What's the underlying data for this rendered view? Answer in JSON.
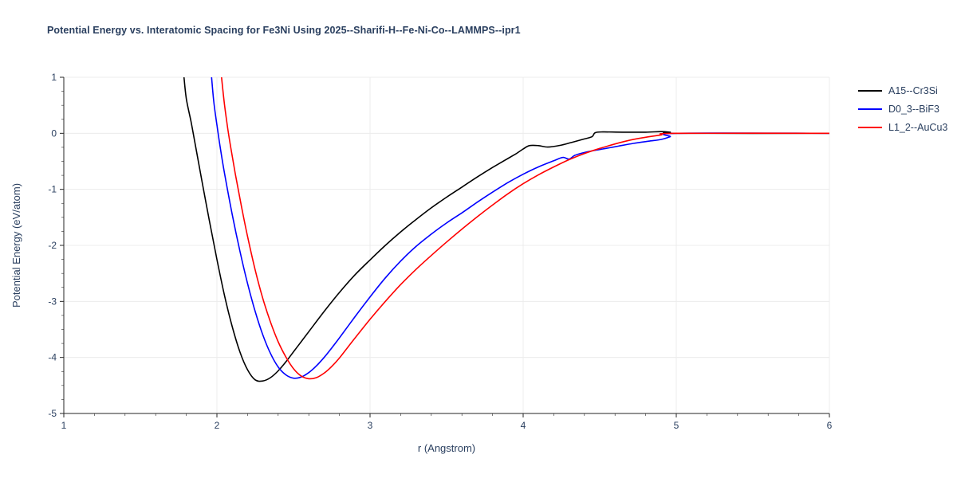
{
  "chart_data": {
    "type": "line",
    "title": "Potential Energy vs. Interatomic Spacing for Fe3Ni Using 2025--Sharifi-H--Fe-Ni-Co--LAMMPS--ipr1",
    "xlabel": "r (Angstrom)",
    "ylabel": "Potential Energy (eV/atom)",
    "xlim": [
      1,
      6
    ],
    "ylim": [
      -5,
      1
    ],
    "xticks": [
      1,
      2,
      3,
      4,
      5,
      6
    ],
    "yticks": [
      -5,
      -4,
      -3,
      -2,
      -1,
      0,
      1
    ],
    "grid": true,
    "legend_position": "top-right-outside",
    "text_color": "#2a3f5f",
    "grid_color": "#ececec",
    "axis_color": "#262626",
    "series": [
      {
        "name": "A15--Cr3Si",
        "color": "#000000",
        "points": [
          [
            1.785,
            1.0
          ],
          [
            1.8,
            0.62
          ],
          [
            1.83,
            0.22
          ],
          [
            1.86,
            -0.22
          ],
          [
            1.9,
            -0.82
          ],
          [
            1.95,
            -1.55
          ],
          [
            2.0,
            -2.25
          ],
          [
            2.05,
            -2.9
          ],
          [
            2.1,
            -3.45
          ],
          [
            2.15,
            -3.9
          ],
          [
            2.2,
            -4.22
          ],
          [
            2.25,
            -4.4
          ],
          [
            2.3,
            -4.42
          ],
          [
            2.35,
            -4.36
          ],
          [
            2.4,
            -4.24
          ],
          [
            2.45,
            -4.08
          ],
          [
            2.5,
            -3.9
          ],
          [
            2.55,
            -3.72
          ],
          [
            2.6,
            -3.54
          ],
          [
            2.7,
            -3.18
          ],
          [
            2.8,
            -2.84
          ],
          [
            2.9,
            -2.53
          ],
          [
            3.0,
            -2.26
          ],
          [
            3.1,
            -2.0
          ],
          [
            3.2,
            -1.76
          ],
          [
            3.3,
            -1.54
          ],
          [
            3.4,
            -1.33
          ],
          [
            3.5,
            -1.14
          ],
          [
            3.6,
            -0.96
          ],
          [
            3.7,
            -0.78
          ],
          [
            3.8,
            -0.61
          ],
          [
            3.9,
            -0.45
          ],
          [
            3.95,
            -0.37
          ],
          [
            4.0,
            -0.28
          ],
          [
            4.04,
            -0.22
          ],
          [
            4.1,
            -0.22
          ],
          [
            4.16,
            -0.245
          ],
          [
            4.24,
            -0.215
          ],
          [
            4.32,
            -0.16
          ],
          [
            4.4,
            -0.1
          ],
          [
            4.45,
            -0.06
          ],
          [
            4.47,
            0.01
          ],
          [
            4.52,
            0.025
          ],
          [
            4.65,
            0.02
          ],
          [
            4.8,
            0.02
          ],
          [
            4.9,
            0.03
          ],
          [
            4.96,
            0.02
          ],
          [
            5.0,
            0.0
          ],
          [
            6.0,
            0.0
          ]
        ]
      },
      {
        "name": "D0_3--BiF3",
        "color": "#0000ff",
        "points": [
          [
            1.965,
            1.0
          ],
          [
            1.98,
            0.55
          ],
          [
            2.0,
            0.15
          ],
          [
            2.02,
            -0.22
          ],
          [
            2.05,
            -0.72
          ],
          [
            2.1,
            -1.45
          ],
          [
            2.15,
            -2.1
          ],
          [
            2.2,
            -2.68
          ],
          [
            2.25,
            -3.18
          ],
          [
            2.3,
            -3.6
          ],
          [
            2.35,
            -3.93
          ],
          [
            2.4,
            -4.17
          ],
          [
            2.45,
            -4.31
          ],
          [
            2.5,
            -4.37
          ],
          [
            2.55,
            -4.35
          ],
          [
            2.6,
            -4.27
          ],
          [
            2.65,
            -4.15
          ],
          [
            2.7,
            -4.0
          ],
          [
            2.75,
            -3.83
          ],
          [
            2.8,
            -3.65
          ],
          [
            2.9,
            -3.28
          ],
          [
            3.0,
            -2.92
          ],
          [
            3.1,
            -2.58
          ],
          [
            3.2,
            -2.28
          ],
          [
            3.3,
            -2.02
          ],
          [
            3.4,
            -1.8
          ],
          [
            3.5,
            -1.6
          ],
          [
            3.6,
            -1.42
          ],
          [
            3.7,
            -1.23
          ],
          [
            3.8,
            -1.05
          ],
          [
            3.9,
            -0.88
          ],
          [
            4.0,
            -0.73
          ],
          [
            4.1,
            -0.6
          ],
          [
            4.2,
            -0.49
          ],
          [
            4.26,
            -0.43
          ],
          [
            4.3,
            -0.46
          ],
          [
            4.34,
            -0.39
          ],
          [
            4.42,
            -0.33
          ],
          [
            4.52,
            -0.28
          ],
          [
            4.62,
            -0.23
          ],
          [
            4.72,
            -0.18
          ],
          [
            4.82,
            -0.14
          ],
          [
            4.9,
            -0.11
          ],
          [
            4.96,
            -0.06
          ],
          [
            5.0,
            0.0
          ],
          [
            6.0,
            0.0
          ]
        ]
      },
      {
        "name": "L1_2--AuCu3",
        "color": "#ff0000",
        "points": [
          [
            2.03,
            1.0
          ],
          [
            2.05,
            0.5
          ],
          [
            2.07,
            0.1
          ],
          [
            2.09,
            -0.25
          ],
          [
            2.12,
            -0.72
          ],
          [
            2.16,
            -1.3
          ],
          [
            2.2,
            -1.84
          ],
          [
            2.25,
            -2.44
          ],
          [
            2.3,
            -2.95
          ],
          [
            2.35,
            -3.37
          ],
          [
            2.4,
            -3.72
          ],
          [
            2.45,
            -3.99
          ],
          [
            2.5,
            -4.2
          ],
          [
            2.55,
            -4.33
          ],
          [
            2.6,
            -4.38
          ],
          [
            2.65,
            -4.36
          ],
          [
            2.7,
            -4.28
          ],
          [
            2.75,
            -4.16
          ],
          [
            2.8,
            -4.01
          ],
          [
            2.9,
            -3.66
          ],
          [
            3.0,
            -3.32
          ],
          [
            3.1,
            -3.0
          ],
          [
            3.2,
            -2.7
          ],
          [
            3.3,
            -2.43
          ],
          [
            3.4,
            -2.18
          ],
          [
            3.5,
            -1.94
          ],
          [
            3.6,
            -1.71
          ],
          [
            3.7,
            -1.49
          ],
          [
            3.8,
            -1.28
          ],
          [
            3.9,
            -1.08
          ],
          [
            4.0,
            -0.9
          ],
          [
            4.1,
            -0.74
          ],
          [
            4.2,
            -0.6
          ],
          [
            4.3,
            -0.47
          ],
          [
            4.4,
            -0.36
          ],
          [
            4.5,
            -0.27
          ],
          [
            4.6,
            -0.19
          ],
          [
            4.7,
            -0.12
          ],
          [
            4.8,
            -0.07
          ],
          [
            4.9,
            -0.03
          ],
          [
            5.0,
            0.0
          ],
          [
            6.0,
            0.0
          ]
        ]
      }
    ]
  }
}
